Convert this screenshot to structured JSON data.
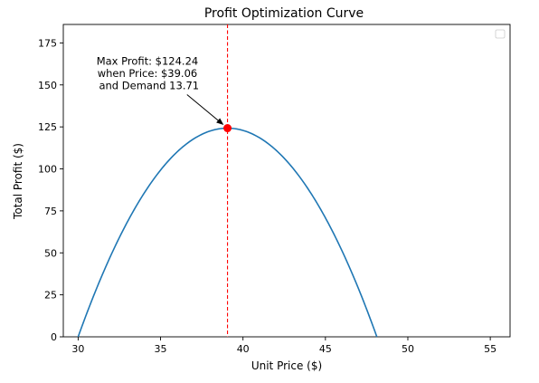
{
  "chart_data": {
    "type": "line",
    "title": "Profit Optimization Curve",
    "xlabel": "Unit Price ($)",
    "ylabel": "Total Profit ($)",
    "xlim": [
      29.1,
      56.2
    ],
    "ylim": [
      0,
      186
    ],
    "xticks": [
      30,
      35,
      40,
      45,
      50,
      55
    ],
    "yticks": [
      0,
      25,
      50,
      75,
      100,
      125,
      150,
      175
    ],
    "grid": false,
    "legend": "top-right",
    "series": [
      {
        "color": "#1f77b4",
        "curve": {
          "type": "quadratic",
          "vertex_x": 39.06,
          "vertex_y": 124.24,
          "root_left": 30,
          "root_right": 48.12
        },
        "x": [
          30,
          31,
          32,
          33,
          34,
          35,
          36,
          37,
          38,
          39.06,
          40,
          41,
          42,
          43,
          44,
          45,
          46,
          47,
          48,
          48.12
        ],
        "y": [
          0,
          29.2,
          55.4,
          78.3,
          98.2,
          114.9,
          118.7,
          121.6,
          123.5,
          124.24,
          123.5,
          121.6,
          118.7,
          114.9,
          98.2,
          78.3,
          55.4,
          29.2,
          3.8,
          0
        ]
      }
    ],
    "optimum": {
      "x": 39.06,
      "y": 124.24,
      "color": "#ff0000"
    },
    "vline": {
      "x": 39.06,
      "color": "#ff0000",
      "style": "dashed"
    },
    "annotation": {
      "lines": [
        "Max Profit: $124.24",
        "when Price: $39.06",
        "and Demand 13.71"
      ],
      "text_x": 34.3,
      "text_y": 162
    }
  }
}
